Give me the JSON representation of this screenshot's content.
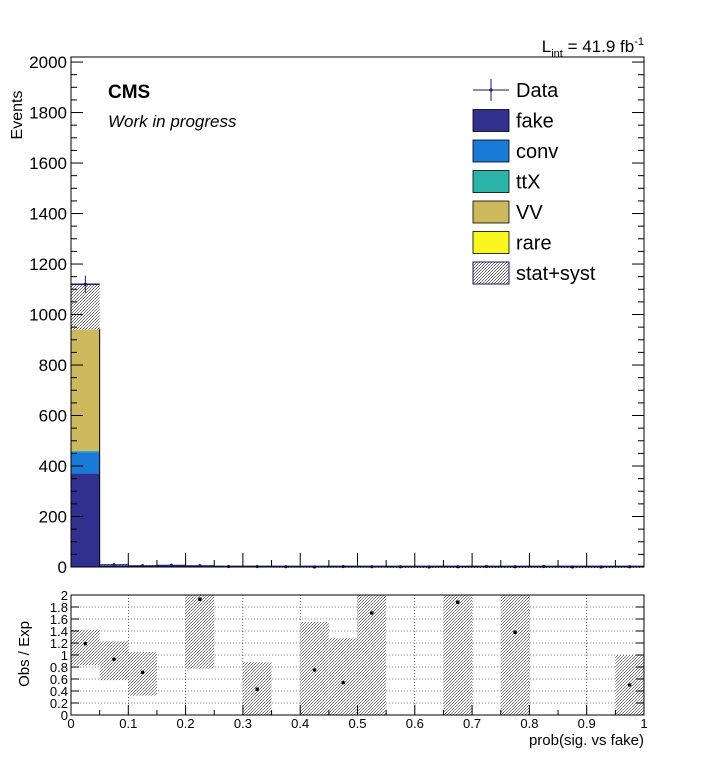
{
  "chart_data": {
    "type": "bar",
    "lumi_label": {
      "main": "L",
      "sub": "int",
      "value": " = 41.9 fb",
      "sup": "-1"
    },
    "cms_label": "CMS",
    "status_label": "Work in progress",
    "main": {
      "ylabel": "Events",
      "ylim": [
        0,
        2020
      ],
      "yticks": [
        0,
        200,
        400,
        600,
        800,
        1000,
        1200,
        1400,
        1600,
        1800,
        2000
      ],
      "xlim": [
        0,
        1
      ],
      "bin_edges": [
        0,
        0.05,
        0.1,
        0.15,
        0.2,
        0.25,
        0.3,
        0.35,
        0.4,
        0.45,
        0.5,
        0.55,
        0.6,
        0.65,
        0.7,
        0.75,
        0.8,
        0.85,
        0.9,
        0.95,
        1.0
      ],
      "stack": [
        {
          "name": "fake",
          "color": "#32308f",
          "values": [
            370,
            4,
            3,
            2,
            3,
            1,
            1,
            0.5,
            0.5,
            1,
            0.5,
            0.5,
            0.3,
            0.3,
            0.3,
            0.3,
            0.3,
            0.2,
            0.2,
            0.3
          ]
        },
        {
          "name": "conv",
          "color": "#1a7ad7",
          "values": [
            85,
            1,
            1,
            1,
            1,
            0.5,
            0.3,
            0.3,
            0.3,
            0.3,
            0.3,
            0.2,
            0.2,
            0.2,
            0.2,
            0.2,
            0.2,
            0.1,
            0.1,
            0.1
          ]
        },
        {
          "name": "ttX",
          "color": "#2bb3a7",
          "values": [
            5,
            0.5,
            0.3,
            0.3,
            0.3,
            0.2,
            0.2,
            0.2,
            0.2,
            0.2,
            0.2,
            0.1,
            0.1,
            0.1,
            0.1,
            0.1,
            0.1,
            0.1,
            0.1,
            0.1
          ]
        },
        {
          "name": "VV",
          "color": "#cdb85e",
          "values": [
            480,
            3,
            2,
            2,
            1,
            1,
            1,
            1,
            1,
            1,
            1,
            0.5,
            0.5,
            0.5,
            0.5,
            0.5,
            0.5,
            0.5,
            0.5,
            1
          ]
        },
        {
          "name": "rare",
          "color": "#f8f820",
          "values": [
            3,
            0.2,
            0.1,
            0.1,
            0.1,
            0.1,
            0.1,
            0.1,
            0.1,
            0.1,
            0.1,
            0.1,
            0.1,
            0.1,
            0.1,
            0.1,
            0.1,
            0.1,
            0.1,
            0.1
          ]
        }
      ],
      "unc_band": [
        [
          940,
          1120
        ],
        [
          6,
          12
        ],
        [
          4,
          8
        ],
        [
          3,
          7
        ],
        [
          3,
          6
        ],
        [
          2,
          4
        ],
        [
          2,
          4
        ],
        [
          1,
          3
        ],
        [
          1,
          3
        ],
        [
          1,
          3
        ],
        [
          1,
          3
        ],
        [
          1,
          2
        ],
        [
          1,
          2
        ],
        [
          1,
          2
        ],
        [
          1,
          2
        ],
        [
          1,
          2
        ],
        [
          1,
          2
        ],
        [
          0.5,
          1.5
        ],
        [
          0.5,
          1.5
        ],
        [
          1,
          2.5
        ]
      ],
      "data": [
        1120,
        9,
        5,
        7,
        5,
        2,
        2,
        1,
        0,
        2,
        1,
        1,
        0,
        1,
        2,
        1,
        2,
        0,
        0,
        1
      ],
      "data_err": [
        34,
        4,
        3,
        3,
        3,
        2,
        2,
        1,
        1,
        2,
        1,
        1,
        1,
        1,
        2,
        1,
        2,
        1,
        1,
        1
      ]
    },
    "legend": {
      "placement": "top-right",
      "entries": [
        {
          "label": "Data",
          "kind": "marker",
          "color": "#1a1a6e"
        },
        {
          "label": "fake",
          "kind": "fill",
          "color": "#32308f"
        },
        {
          "label": "conv",
          "kind": "fill",
          "color": "#1a7ad7"
        },
        {
          "label": "ttX",
          "kind": "fill",
          "color": "#2bb3a7"
        },
        {
          "label": "VV",
          "kind": "fill",
          "color": "#cdb85e"
        },
        {
          "label": "rare",
          "kind": "fill",
          "color": "#f8f820"
        },
        {
          "label": "stat+syst",
          "kind": "hatch",
          "color": "#1a1a6e"
        }
      ]
    },
    "ratio": {
      "ylabel": "Obs / Exp",
      "ylim": [
        0,
        2
      ],
      "yticks": [
        0,
        0.2,
        0.4,
        0.6,
        0.8,
        1,
        1.2,
        1.4,
        1.6,
        1.8,
        2
      ],
      "ytick_labels": [
        "0",
        "0.2",
        "0.4",
        "0.6",
        "0.8",
        "1",
        "1.2",
        "1.4",
        "1.6",
        "1.8",
        "2"
      ],
      "xticks": [
        0,
        0.1,
        0.2,
        0.3,
        0.4,
        0.5,
        0.6,
        0.7,
        0.8,
        0.9,
        1
      ],
      "xtick_labels": [
        "0",
        "0.1",
        "0.2",
        "0.3",
        "0.4",
        "0.5",
        "0.6",
        "0.7",
        "0.8",
        "0.9",
        "1"
      ],
      "xlabel": "prob(sig. vs fake)",
      "points": [
        1.19,
        0.93,
        0.71,
        null,
        1.93,
        null,
        0.43,
        null,
        0.75,
        0.54,
        1.7,
        null,
        null,
        1.88,
        null,
        1.38,
        null,
        null,
        null,
        0.5
      ],
      "band": [
        [
          0.83,
          1.42
        ],
        [
          0.58,
          1.23
        ],
        [
          0.32,
          1.05
        ],
        null,
        [
          0.77,
          2.0
        ],
        null,
        [
          0.0,
          0.88
        ],
        null,
        [
          0.0,
          1.55
        ],
        [
          0.0,
          1.28
        ],
        [
          0.0,
          2.0
        ],
        null,
        null,
        [
          0.0,
          2.0
        ],
        null,
        [
          0.0,
          2.0
        ],
        null,
        null,
        null,
        [
          0.0,
          1.0
        ]
      ]
    }
  }
}
